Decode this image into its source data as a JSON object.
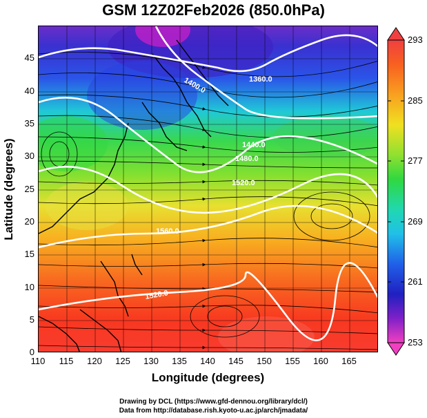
{
  "title": "GSM 12Z02Feb2026 (850.0hPa)",
  "xaxis": {
    "label": "Longitude (degrees)",
    "ticks": [
      "110",
      "115",
      "120",
      "125",
      "130",
      "135",
      "140",
      "145",
      "150",
      "155",
      "160",
      "165"
    ]
  },
  "yaxis": {
    "label": "Latitude  (degrees)",
    "ticks": [
      "0",
      "5",
      "10",
      "15",
      "20",
      "25",
      "30",
      "35",
      "40",
      "45"
    ]
  },
  "colorbar": {
    "ticks": [
      "293",
      "285",
      "277",
      "269",
      "261",
      "253"
    ]
  },
  "contour_labels": [
    "1400.0",
    "1360.0",
    "1440.0",
    "1480.0",
    "1520.0",
    "1560.0",
    "1520.0"
  ],
  "footer": {
    "line1": "Drawing by DCL (https://www.gfd-dennou.org/library/dcl/)",
    "line2": "Data from http://database.rish.kyoto-u.ac.jp/arch/jmadata/"
  },
  "chart_data": {
    "type": "heatmap",
    "title": "GSM 12Z02Feb2026 (850.0hPa)",
    "xlabel": "Longitude (degrees)",
    "ylabel": "Latitude  (degrees)",
    "xlim": [
      110,
      170
    ],
    "ylim": [
      0,
      50
    ],
    "colorbar_range": [
      253,
      293
    ],
    "colorbar_ticks": [
      253,
      261,
      269,
      277,
      285,
      293
    ],
    "grid": true
  }
}
